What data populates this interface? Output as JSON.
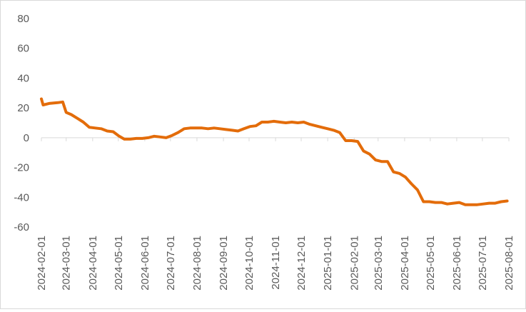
{
  "chart_data": {
    "type": "line",
    "title": "",
    "xlabel": "",
    "ylabel": "",
    "ylim": [
      -60,
      80
    ],
    "yticks": [
      80,
      60,
      40,
      20,
      0,
      -20,
      -40,
      -60
    ],
    "grid": false,
    "legend": "none",
    "x_tick_labels": [
      "2024-02-01",
      "2024-03-01",
      "2024-04-01",
      "2024-05-01",
      "2024-06-01",
      "2024-07-01",
      "2024-08-01",
      "2024-09-01",
      "2024-10-01",
      "2024-11-01",
      "2024-12-01",
      "2025-01-01",
      "2025-02-01",
      "2025-03-01",
      "2025-04-01",
      "2025-05-01",
      "2025-06-01",
      "2025-07-01",
      "2025-08-01"
    ],
    "series": [
      {
        "name": "",
        "color": "#E36C0A",
        "points": [
          [
            "2024-02-01",
            26
          ],
          [
            "2024-02-03",
            22
          ],
          [
            "2024-02-10",
            23
          ],
          [
            "2024-02-20",
            23.5
          ],
          [
            "2024-02-26",
            24
          ],
          [
            "2024-03-01",
            17
          ],
          [
            "2024-03-07",
            15.5
          ],
          [
            "2024-03-14",
            13
          ],
          [
            "2024-03-21",
            10.5
          ],
          [
            "2024-03-28",
            7
          ],
          [
            "2024-04-04",
            6.5
          ],
          [
            "2024-04-11",
            6
          ],
          [
            "2024-04-18",
            4.5
          ],
          [
            "2024-04-25",
            4
          ],
          [
            "2024-05-02",
            1
          ],
          [
            "2024-05-08",
            -1
          ],
          [
            "2024-05-15",
            -1
          ],
          [
            "2024-05-22",
            -0.5
          ],
          [
            "2024-05-29",
            -0.5
          ],
          [
            "2024-06-05",
            0
          ],
          [
            "2024-06-12",
            1
          ],
          [
            "2024-06-19",
            0.5
          ],
          [
            "2024-06-26",
            0
          ],
          [
            "2024-07-03",
            1.5
          ],
          [
            "2024-07-10",
            3.5
          ],
          [
            "2024-07-17",
            6
          ],
          [
            "2024-07-24",
            6.5
          ],
          [
            "2024-07-31",
            6.5
          ],
          [
            "2024-08-07",
            6.5
          ],
          [
            "2024-08-14",
            6
          ],
          [
            "2024-08-21",
            6.5
          ],
          [
            "2024-08-28",
            6
          ],
          [
            "2024-09-04",
            5.5
          ],
          [
            "2024-09-11",
            5
          ],
          [
            "2024-09-18",
            4.5
          ],
          [
            "2024-09-25",
            6
          ],
          [
            "2024-10-02",
            7.5
          ],
          [
            "2024-10-09",
            8
          ],
          [
            "2024-10-16",
            10.5
          ],
          [
            "2024-10-23",
            10.5
          ],
          [
            "2024-10-30",
            11
          ],
          [
            "2024-11-06",
            10.5
          ],
          [
            "2024-11-13",
            10
          ],
          [
            "2024-11-20",
            10.5
          ],
          [
            "2024-11-27",
            10
          ],
          [
            "2024-12-04",
            10.5
          ],
          [
            "2024-12-11",
            9
          ],
          [
            "2024-12-18",
            8
          ],
          [
            "2024-12-25",
            7
          ],
          [
            "2025-01-01",
            6
          ],
          [
            "2025-01-08",
            5
          ],
          [
            "2025-01-15",
            3.5
          ],
          [
            "2025-01-22",
            -2
          ],
          [
            "2025-01-29",
            -2
          ],
          [
            "2025-02-05",
            -2.5
          ],
          [
            "2025-02-12",
            -9
          ],
          [
            "2025-02-19",
            -11
          ],
          [
            "2025-02-26",
            -15
          ],
          [
            "2025-03-05",
            -16
          ],
          [
            "2025-03-12",
            -16
          ],
          [
            "2025-03-19",
            -23
          ],
          [
            "2025-03-26",
            -24
          ],
          [
            "2025-04-02",
            -26.5
          ],
          [
            "2025-04-09",
            -31
          ],
          [
            "2025-04-16",
            -35
          ],
          [
            "2025-04-23",
            -43
          ],
          [
            "2025-04-30",
            -43
          ],
          [
            "2025-05-07",
            -43.5
          ],
          [
            "2025-05-14",
            -43.5
          ],
          [
            "2025-05-21",
            -44.5
          ],
          [
            "2025-05-28",
            -44
          ],
          [
            "2025-06-04",
            -43.5
          ],
          [
            "2025-06-11",
            -45
          ],
          [
            "2025-06-18",
            -45
          ],
          [
            "2025-06-25",
            -45
          ],
          [
            "2025-07-02",
            -44.5
          ],
          [
            "2025-07-09",
            -44
          ],
          [
            "2025-07-16",
            -44
          ],
          [
            "2025-07-23",
            -43
          ],
          [
            "2025-07-30",
            -42.5
          ]
        ]
      }
    ]
  }
}
